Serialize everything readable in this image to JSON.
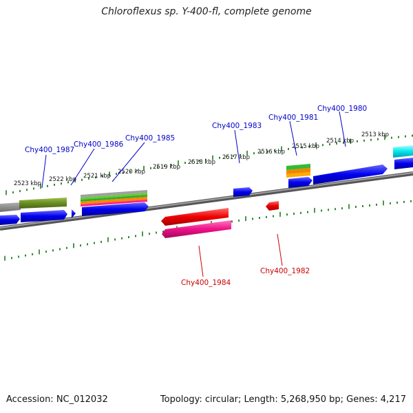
{
  "title": "Chloroflexus sp. Y-400-fl, complete genome",
  "accession": "Accession: NC_012032",
  "topology": "Topology: circular; Length: 5,268,950 bp; Genes: 4,217",
  "colors": {
    "backbone": "#7f7f7f",
    "tick": "#1c7a1c",
    "forward_label": "#0000cc",
    "reverse_label": "#cc0000",
    "gene_blue": "#0000ee",
    "gene_red": "#ee0000",
    "gene_pink": "#ee1188",
    "gene_cyan": "#00e5ee",
    "gene_olive": "#6b8e23"
  },
  "kbp_labels": [
    "2523 kbp",
    "2522 kbp",
    "2521 kbp",
    "2520 kbp",
    "2519 kbp",
    "2518 kbp",
    "2517 kbp",
    "2516 kbp",
    "2515 kbp",
    "2514 kbp",
    "2513 kbp"
  ],
  "genes": {
    "forward": [
      "Chy400_1987",
      "Chy400_1986",
      "Chy400_1985",
      "Chy400_1983",
      "Chy400_1981",
      "Chy400_1980"
    ],
    "reverse": [
      "Chy400_1984",
      "Chy400_1982"
    ]
  }
}
